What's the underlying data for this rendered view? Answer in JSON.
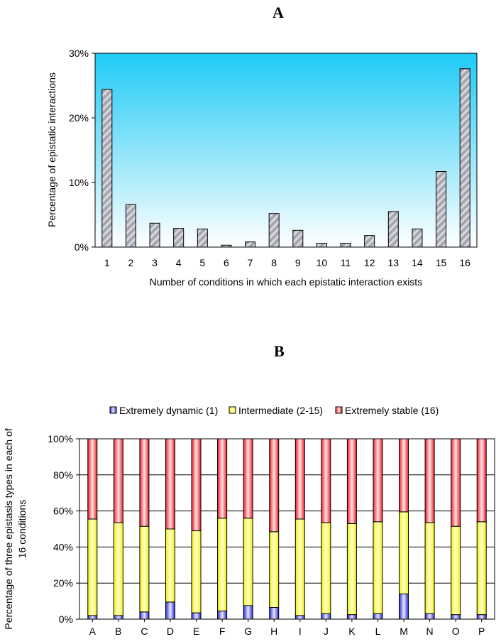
{
  "panels": {
    "a_label": "A",
    "b_label": "B"
  },
  "chart_data": [
    {
      "type": "bar",
      "title": "A",
      "xlabel": "Number of conditions in which each epistatic interaction exists",
      "ylabel": "Percentage of epistatic interactions",
      "categories": [
        "1",
        "2",
        "3",
        "4",
        "5",
        "6",
        "7",
        "8",
        "9",
        "10",
        "11",
        "12",
        "13",
        "14",
        "15",
        "16"
      ],
      "values": [
        24.4,
        6.6,
        3.7,
        2.9,
        2.8,
        0.3,
        0.8,
        5.2,
        2.6,
        0.6,
        0.6,
        1.8,
        5.5,
        2.8,
        11.7,
        27.6
      ],
      "ylim": [
        0,
        30
      ],
      "yticks": [
        "0%",
        "10%",
        "20%",
        "30%"
      ],
      "ytick_values": [
        0,
        10,
        20,
        30
      ],
      "colors": {
        "bar_fill": "#a6a6b0",
        "bg_top": "#1ecaf5",
        "bg_bottom": "#ffffff"
      }
    },
    {
      "type": "bar",
      "stacked": true,
      "title": "B",
      "xlabel": "",
      "ylabel_line1": "Percentage of three epistasis types in each of",
      "ylabel_line2": "16 conditions",
      "categories": [
        "A",
        "B",
        "C",
        "D",
        "E",
        "F",
        "G",
        "H",
        "I",
        "J",
        "K",
        "L",
        "M",
        "N",
        "O",
        "P"
      ],
      "series": [
        {
          "name": "Extremely dynamic (1)",
          "color": "#2b2bd6",
          "values": [
            2,
            2,
            4,
            9.5,
            3.5,
            4.5,
            7.5,
            6.5,
            2,
            3,
            2.5,
            3,
            14,
            3,
            2.5,
            2.5
          ]
        },
        {
          "name": "Intermediate (2-15)",
          "color": "#f2f20a",
          "values": [
            53.5,
            51.5,
            47.5,
            40.5,
            45.5,
            51.5,
            48.5,
            42,
            53.5,
            50.5,
            50.5,
            51,
            45.5,
            50.5,
            49,
            51.5
          ]
        },
        {
          "name": "Extremely stable (16)",
          "color": "#ee1c24",
          "values": [
            44.5,
            46.5,
            48.5,
            50,
            51,
            44,
            44,
            51.5,
            44.5,
            46.5,
            47,
            46,
            40.5,
            46.5,
            48.5,
            46
          ]
        }
      ],
      "ylim": [
        0,
        100
      ],
      "yticks": [
        "0%",
        "20%",
        "40%",
        "60%",
        "80%",
        "100%"
      ],
      "ytick_values": [
        0,
        20,
        40,
        60,
        80,
        100
      ],
      "legend_position": "top"
    }
  ]
}
